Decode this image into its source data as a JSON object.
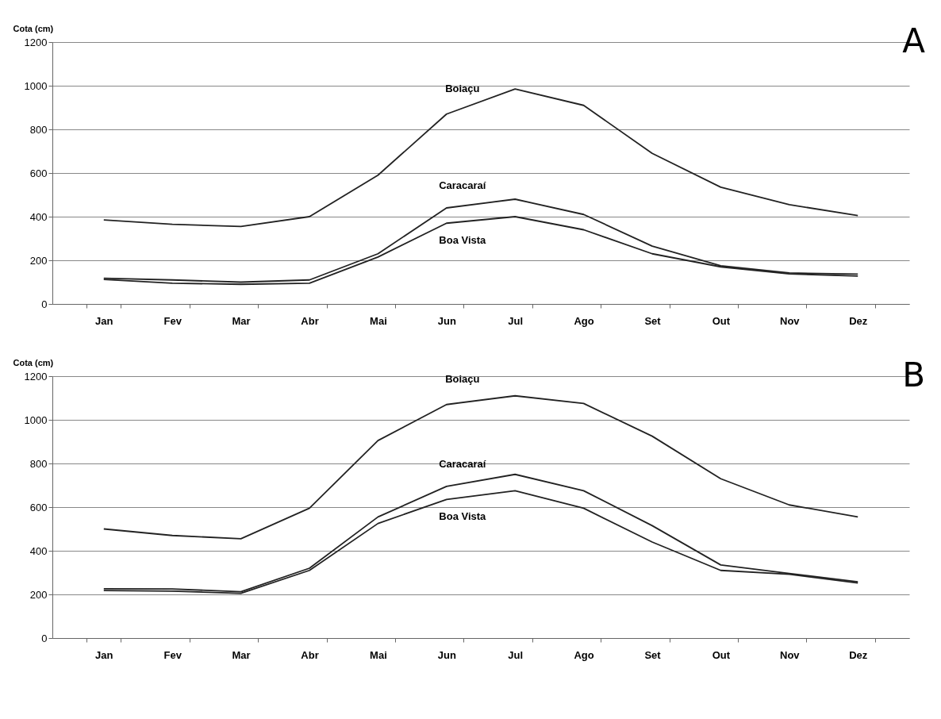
{
  "chart_data": [
    {
      "type": "line",
      "ylabel": "Cota (cm)",
      "categories": [
        "Jan",
        "Fev",
        "Mar",
        "Abr",
        "Mai",
        "Jun",
        "Jul",
        "Ago",
        "Set",
        "Out",
        "Nov",
        "Dez"
      ],
      "ylim": [
        0,
        1200
      ],
      "yticks": [
        0,
        200,
        400,
        600,
        800,
        1000,
        1200
      ],
      "grid": "y",
      "legend": false,
      "annotations": [
        "A"
      ],
      "series": [
        {
          "name": "Boiaçu",
          "color": "#222222",
          "values": [
            385,
            365,
            355,
            400,
            590,
            870,
            985,
            910,
            690,
            535,
            455,
            405
          ]
        },
        {
          "name": "Caracaraí",
          "color": "#222222",
          "values": [
            118,
            110,
            100,
            110,
            230,
            440,
            480,
            410,
            265,
            175,
            142,
            137
          ]
        },
        {
          "name": "Boa Vista",
          "color": "#222222",
          "values": [
            112,
            95,
            90,
            95,
            215,
            370,
            400,
            340,
            230,
            170,
            138,
            128
          ]
        }
      ]
    },
    {
      "type": "line",
      "ylabel": "Cota (cm)",
      "categories": [
        "Jan",
        "Fev",
        "Mar",
        "Abr",
        "Mai",
        "Jun",
        "Jul",
        "Ago",
        "Set",
        "Out",
        "Nov",
        "Dez"
      ],
      "ylim": [
        0,
        1200
      ],
      "yticks": [
        0,
        200,
        400,
        600,
        800,
        1000,
        1200
      ],
      "grid": "y",
      "legend": false,
      "annotations": [
        "B"
      ],
      "series": [
        {
          "name": "Boiaçu",
          "color": "#222222",
          "values": [
            500,
            470,
            455,
            595,
            905,
            1070,
            1110,
            1075,
            925,
            730,
            610,
            555
          ]
        },
        {
          "name": "Caracaraí",
          "color": "#222222",
          "values": [
            226,
            225,
            212,
            320,
            555,
            695,
            750,
            675,
            515,
            335,
            296,
            258
          ]
        },
        {
          "name": "Boa Vista",
          "color": "#222222",
          "values": [
            218,
            215,
            205,
            310,
            525,
            635,
            675,
            595,
            440,
            310,
            292,
            252
          ]
        }
      ]
    }
  ]
}
